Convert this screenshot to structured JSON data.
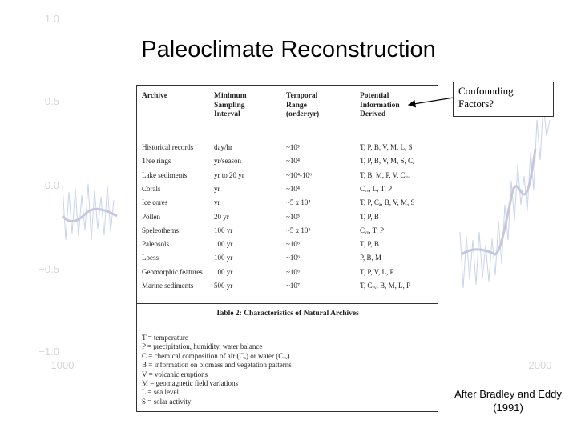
{
  "slide": {
    "title": "Paleoclimate Reconstruction",
    "credit_line1": "After Bradley and Eddy",
    "credit_line2": "(1991)"
  },
  "callout": {
    "line1": "Confounding",
    "line2": "Factors?"
  },
  "background_chart": {
    "y_ticks": [
      "1.0",
      "0.5",
      "0.0",
      "−0.5",
      "−1.0"
    ],
    "x_ticks": [
      "1000",
      "2000"
    ]
  },
  "table": {
    "headers": [
      "Archive",
      "Minimum\nSampling\nInterval",
      "Temporal\nRange\n(order:yr)",
      "Potential\nInformation\nDerived"
    ],
    "rows": [
      {
        "archive": "Historical records",
        "interval": "day/hr",
        "range": "~10³",
        "info": "T, P, B, V, M, L, S"
      },
      {
        "archive": "Tree rings",
        "interval": "yr/season",
        "range": "~10⁴",
        "info": "T, P, B, V, M, S, Cₐ"
      },
      {
        "archive": "Lake sediments",
        "interval": "yr to 20 yr",
        "range": "~10⁴-10⁶",
        "info": "T, B, M, P, V, Cᵥᵥ"
      },
      {
        "archive": "Corals",
        "interval": "yr",
        "range": "~10⁴",
        "info": "Cᵥᵥ, L, T, P"
      },
      {
        "archive": "Ice cores",
        "interval": "yr",
        "range": "~5 x 10⁴",
        "info": "T, P, Cₐ, B, V, M, S"
      },
      {
        "archive": "Pollen",
        "interval": "20 yr",
        "range": "~10⁵",
        "info": "T, P, B"
      },
      {
        "archive": "Speleothems",
        "interval": "100 yr",
        "range": "~5 x 10⁵",
        "info": "Cᵥᵥ, T, P"
      },
      {
        "archive": "Paleosols",
        "interval": "100 yr",
        "range": "~10⁶",
        "info": "T, P, B"
      },
      {
        "archive": "Loess",
        "interval": "100 yr",
        "range": "~10⁶",
        "info": "P, B, M"
      },
      {
        "archive": "Geomorphic features",
        "interval": "100 yr",
        "range": "~10⁶",
        "info": "T, P, V, L, P"
      },
      {
        "archive": "Marine sediments",
        "interval": "500 yr",
        "range": "~10⁷",
        "info": "T, Cᵥᵥ, B, M, L, P"
      }
    ],
    "caption": "Table 2: Characteristics of Natural Archives",
    "legend": [
      "T = temperature",
      "P = precipitation, humidity, water balance",
      "C = chemical composition of air (Cₐ) or water (Cᵥᵥ)",
      "B = information on biomass and vegetation patterns",
      "V = volcanic eruptions",
      "M = geomagnetic field variations",
      "L = sea level",
      "S = solar activity"
    ]
  }
}
